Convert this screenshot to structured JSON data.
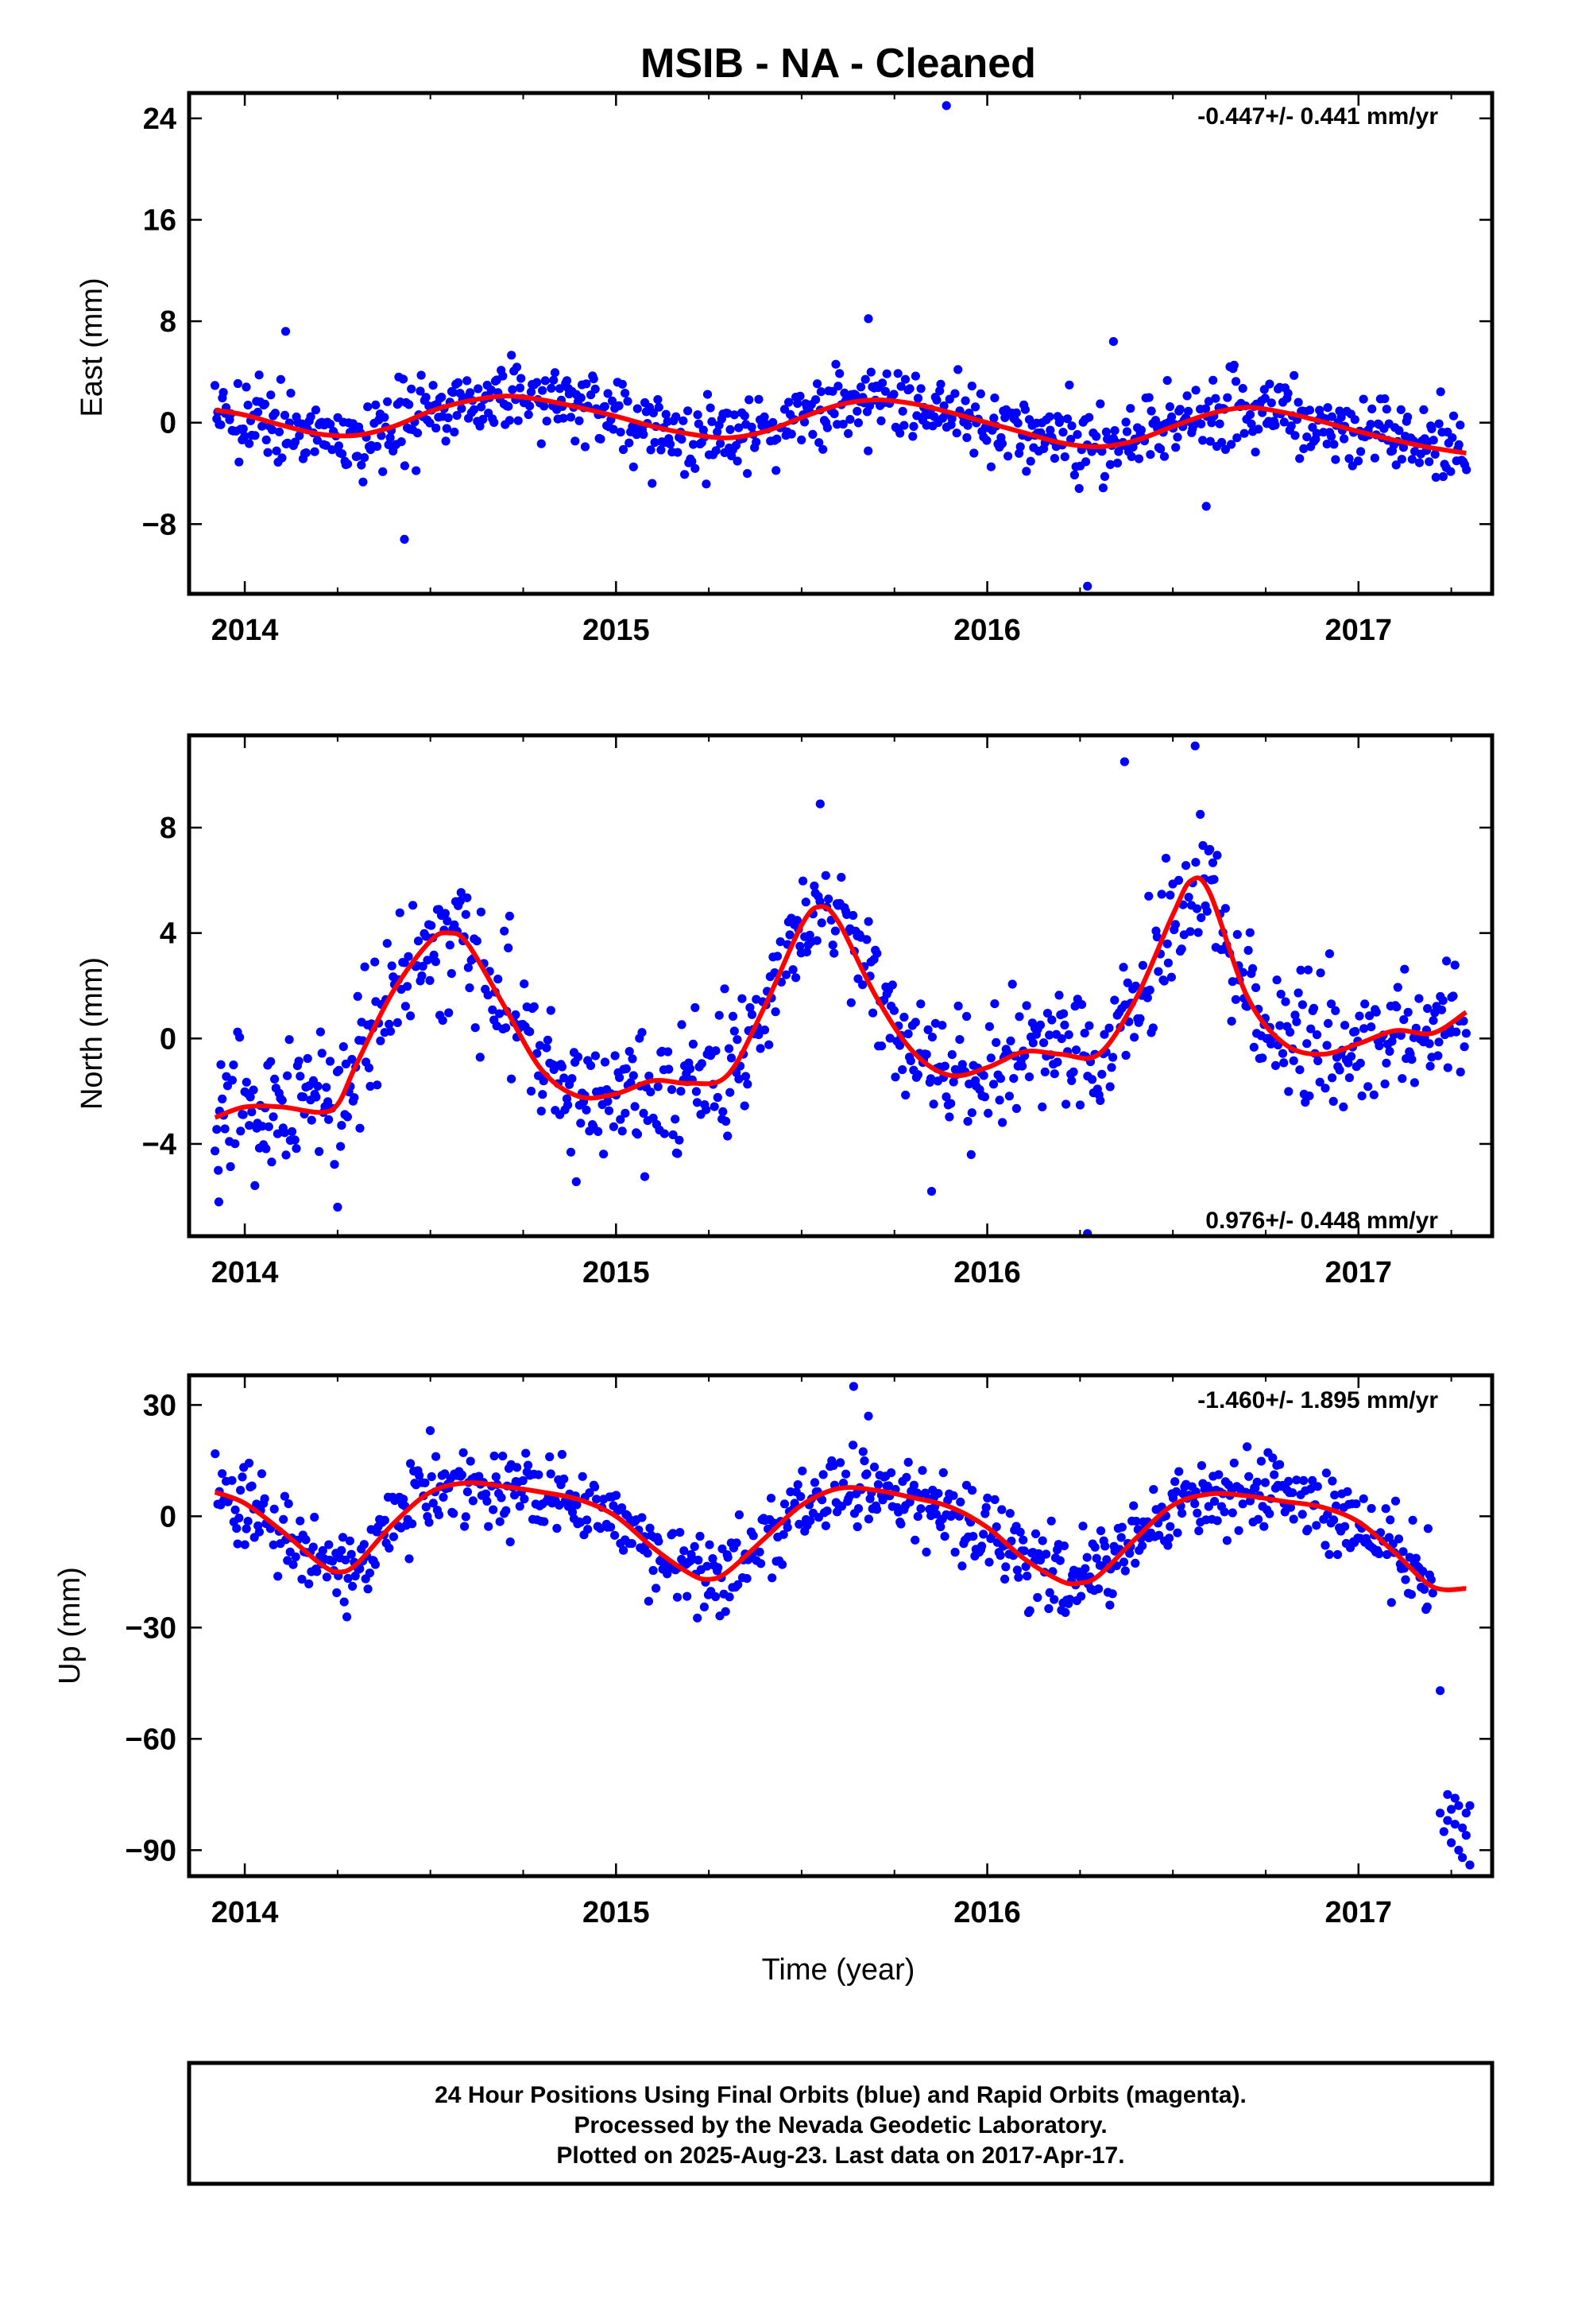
{
  "title": "MSIB  - NA - Cleaned",
  "xlabel": "Time (year)",
  "caption": [
    "24 Hour Positions Using Final Orbits (blue) and Rapid Orbits (magenta).",
    "Processed by the Nevada Geodetic Laboratory.",
    "Plotted on 2025-Aug-23. Last data on 2017-Apr-17."
  ],
  "colors": {
    "points": "#0000ff",
    "fit": "#ff0000",
    "frame": "#000000"
  },
  "chart_data": [
    {
      "type": "scatter",
      "panel": "east",
      "ylabel": "East (mm)",
      "rate_label": "-0.447+/- 0.441 mm/yr",
      "rate_position": "top-right",
      "xlim": [
        2013.85,
        2017.36
      ],
      "ylim": [
        -13.5,
        26
      ],
      "xticks": [
        2014,
        2015,
        2016,
        2017
      ],
      "yticks": [
        24,
        16,
        8,
        0,
        -8
      ],
      "ytick_labels": [
        "24",
        "16",
        "8",
        "0",
        "−8"
      ],
      "data_range_x": [
        2013.92,
        2017.29
      ],
      "series": [
        {
          "kind": "fit_line",
          "x": [
            2013.92,
            2014.0,
            2014.1,
            2014.2,
            2014.3,
            2014.4,
            2014.5,
            2014.6,
            2014.7,
            2014.8,
            2014.9,
            2015.0,
            2015.1,
            2015.2,
            2015.3,
            2015.4,
            2015.5,
            2015.6,
            2015.7,
            2015.8,
            2015.9,
            2016.0,
            2016.1,
            2016.2,
            2016.3,
            2016.4,
            2016.5,
            2016.6,
            2016.7,
            2016.8,
            2016.9,
            2017.0,
            2017.1,
            2017.2,
            2017.29
          ],
          "y": [
            1.0,
            0.6,
            -0.2,
            -0.9,
            -1.0,
            -0.3,
            0.9,
            1.7,
            2.1,
            1.8,
            1.2,
            0.5,
            -0.3,
            -0.9,
            -1.2,
            -0.7,
            0.4,
            1.4,
            1.8,
            1.5,
            0.8,
            0.0,
            -0.8,
            -1.6,
            -1.9,
            -1.4,
            -0.3,
            0.7,
            1.2,
            0.8,
            0.1,
            -0.7,
            -1.4,
            -2.0,
            -2.4
          ]
        },
        {
          "kind": "outliers",
          "x": [
            2014.43,
            2015.89,
            2016.27,
            2016.34,
            2016.59,
            2015.68,
            2014.11
          ],
          "y": [
            -9.2,
            25.0,
            -12.9,
            6.4,
            -6.6,
            8.2,
            7.2
          ]
        }
      ],
      "scatter_model": {
        "count": 880,
        "noise_sd": 1.5,
        "seed": 11
      }
    },
    {
      "type": "scatter",
      "panel": "north",
      "ylabel": "North (mm)",
      "rate_label": "0.976+/- 0.448 mm/yr",
      "rate_position": "bottom-right",
      "xlim": [
        2013.85,
        2017.36
      ],
      "ylim": [
        -7.5,
        11.5
      ],
      "xticks": [
        2014,
        2015,
        2016,
        2017
      ],
      "yticks": [
        8,
        4,
        0,
        -4
      ],
      "ytick_labels": [
        "8",
        "4",
        "0",
        "−4"
      ],
      "data_range_x": [
        2013.92,
        2017.29
      ],
      "series": [
        {
          "kind": "fit_line",
          "x": [
            2013.92,
            2014.0,
            2014.1,
            2014.2,
            2014.25,
            2014.3,
            2014.4,
            2014.5,
            2014.55,
            2014.6,
            2014.7,
            2014.8,
            2014.9,
            2015.0,
            2015.1,
            2015.2,
            2015.3,
            2015.4,
            2015.5,
            2015.55,
            2015.6,
            2015.7,
            2015.8,
            2015.9,
            2016.0,
            2016.1,
            2016.2,
            2016.3,
            2016.4,
            2016.5,
            2016.55,
            2016.6,
            2016.7,
            2016.8,
            2016.9,
            2017.0,
            2017.1,
            2017.2,
            2017.29
          ],
          "y": [
            -3.0,
            -2.6,
            -2.6,
            -2.8,
            -2.5,
            -1.0,
            1.8,
            3.7,
            4.0,
            3.6,
            1.2,
            -1.2,
            -2.2,
            -2.1,
            -1.6,
            -1.7,
            -1.4,
            1.2,
            4.3,
            5.0,
            4.4,
            1.6,
            -0.5,
            -1.4,
            -1.1,
            -0.5,
            -0.6,
            -0.6,
            1.5,
            4.7,
            6.0,
            5.5,
            1.6,
            -0.2,
            -0.6,
            -0.2,
            0.3,
            0.2,
            1.0
          ]
        },
        {
          "kind": "outliers",
          "x": [
            2016.37,
            2016.56,
            2016.27,
            2013.93,
            2014.25,
            2015.55,
            2015.85
          ],
          "y": [
            10.5,
            11.1,
            -7.4,
            -6.2,
            -6.4,
            8.9,
            -5.8
          ]
        }
      ],
      "scatter_model": {
        "count": 880,
        "noise_sd": 1.2,
        "seed": 23
      }
    },
    {
      "type": "scatter",
      "panel": "up",
      "ylabel": "Up (mm)",
      "rate_label": "-1.460+/- 1.895 mm/yr",
      "rate_position": "top-right",
      "xlim": [
        2013.85,
        2017.36
      ],
      "ylim": [
        -97,
        38
      ],
      "xticks": [
        2014,
        2015,
        2016,
        2017
      ],
      "yticks": [
        30,
        0,
        -30,
        -60,
        -90
      ],
      "ytick_labels": [
        "30",
        "0",
        "−30",
        "−60",
        "−90"
      ],
      "data_range_x": [
        2013.92,
        2017.29
      ],
      "series": [
        {
          "kind": "fit_line",
          "x": [
            2013.92,
            2014.0,
            2014.1,
            2014.2,
            2014.25,
            2014.3,
            2014.4,
            2014.5,
            2014.6,
            2014.7,
            2014.8,
            2014.9,
            2015.0,
            2015.1,
            2015.2,
            2015.25,
            2015.3,
            2015.4,
            2015.5,
            2015.6,
            2015.7,
            2015.8,
            2015.9,
            2016.0,
            2016.1,
            2016.2,
            2016.25,
            2016.3,
            2016.4,
            2016.5,
            2016.6,
            2016.7,
            2016.8,
            2016.9,
            2017.0,
            2017.1,
            2017.2,
            2017.29
          ],
          "y": [
            6.5,
            3.5,
            -4.0,
            -12.5,
            -15.0,
            -13.0,
            -2.0,
            6.5,
            9.0,
            8.0,
            6.5,
            4.5,
            0.0,
            -8.5,
            -15.5,
            -17.0,
            -15.0,
            -6.0,
            3.0,
            7.5,
            7.0,
            5.0,
            2.5,
            -3.0,
            -11.5,
            -17.5,
            -18.0,
            -16.0,
            -6.0,
            3.0,
            6.0,
            5.5,
            4.0,
            2.5,
            -1.5,
            -10.0,
            -19.0,
            -19.5
          ]
        },
        {
          "kind": "outliers",
          "x": [
            2015.64,
            2015.68,
            2017.22,
            2017.22,
            2017.23,
            2017.24,
            2017.25,
            2017.25,
            2017.26,
            2017.27,
            2017.27,
            2017.28,
            2017.28,
            2017.29,
            2017.29,
            2017.3,
            2017.3,
            2017.26,
            2017.24
          ],
          "y": [
            35.0,
            27.0,
            -47.0,
            -80.0,
            -85.0,
            -75.0,
            -79.0,
            -88.0,
            -83.0,
            -78.0,
            -90.0,
            -84.0,
            -92.0,
            -80.0,
            -86.0,
            -78.0,
            -94.0,
            -76.0,
            -82.0
          ]
        }
      ],
      "scatter_model": {
        "count": 860,
        "noise_sd": 5.5,
        "seed": 37,
        "x_max": 2017.2
      }
    }
  ]
}
